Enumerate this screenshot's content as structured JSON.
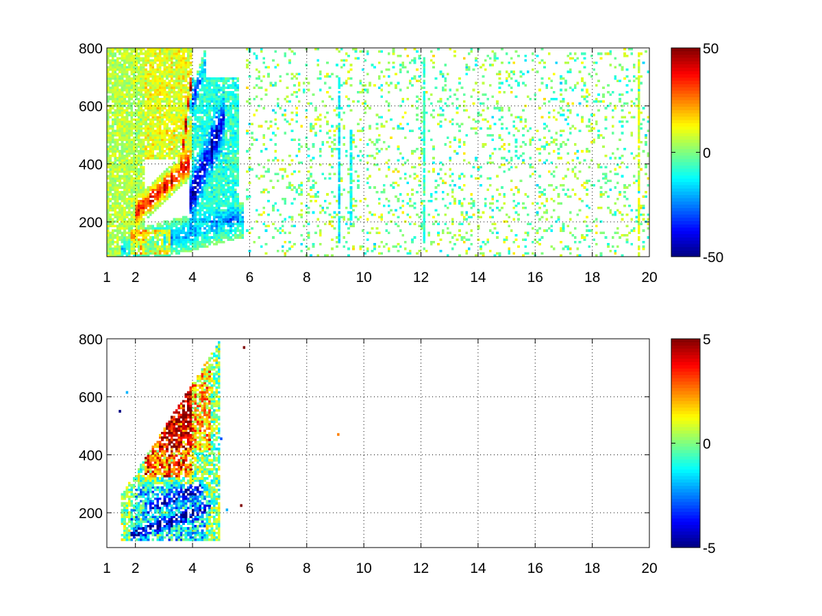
{
  "chart_data": [
    {
      "type": "heatmap",
      "title": "",
      "xlabel": "",
      "ylabel": "",
      "xlim": [
        1,
        20
      ],
      "ylim": [
        80,
        800
      ],
      "x_ticks": [
        1,
        2,
        4,
        6,
        8,
        10,
        12,
        14,
        16,
        18,
        20
      ],
      "y_ticks": [
        200,
        400,
        600,
        800
      ],
      "grid": true,
      "colormap": "jet",
      "clim": [
        -50,
        50
      ],
      "colorbar_ticks": [
        -50,
        0,
        50
      ],
      "features": [
        {
          "type": "band",
          "x_range": [
            2.0,
            3.9
          ],
          "y_start": 230,
          "y_end": 400,
          "sigma": 24,
          "value": 42
        },
        {
          "type": "band",
          "x_range": [
            3.6,
            4.0
          ],
          "y_start": 400,
          "y_end": 720,
          "sigma": 18,
          "value": 40
        },
        {
          "type": "band",
          "x_range": [
            3.9,
            5.1
          ],
          "y_start": 270,
          "y_end": 560,
          "sigma": 45,
          "value": -42
        },
        {
          "type": "band",
          "x_range": [
            3.8,
            4.5
          ],
          "y_start": 560,
          "y_end": 760,
          "sigma": 22,
          "value": -28
        },
        {
          "type": "band",
          "x_range": [
            1.5,
            5.8
          ],
          "y_start": 100,
          "y_end": 210,
          "sigma": 28,
          "value": -22
        },
        {
          "type": "blob",
          "x_range": [
            1.8,
            3.2
          ],
          "y_range": [
            90,
            170
          ],
          "value": 22
        },
        {
          "type": "blob",
          "x_range": [
            2.3,
            4.0
          ],
          "y_range": [
            420,
            800
          ],
          "value": 12
        },
        {
          "type": "blob",
          "x_range": [
            4.0,
            5.6
          ],
          "y_range": [
            200,
            700
          ],
          "value": -10
        },
        {
          "type": "blob",
          "x_range": [
            1.0,
            2.3
          ],
          "y_range": [
            80,
            800
          ],
          "value": 6
        },
        {
          "type": "scatter",
          "x_range": [
            5.9,
            20
          ],
          "y_range": [
            80,
            800
          ],
          "density": 0.13,
          "value_range": [
            -12,
            12
          ]
        },
        {
          "type": "stripe",
          "x": 9.15,
          "y_range": [
            130,
            700
          ],
          "value": -14
        },
        {
          "type": "stripe",
          "x": 9.55,
          "y_range": [
            180,
            520
          ],
          "value": -12
        },
        {
          "type": "stripe",
          "x": 12.1,
          "y_range": [
            80,
            780
          ],
          "value": -8
        },
        {
          "type": "stripe",
          "x": 19.65,
          "y_range": [
            80,
            780
          ],
          "value": 8
        }
      ]
    },
    {
      "type": "heatmap",
      "title": "",
      "xlabel": "",
      "ylabel": "",
      "xlim": [
        1,
        20
      ],
      "ylim": [
        80,
        800
      ],
      "x_ticks": [
        1,
        2,
        4,
        6,
        8,
        10,
        12,
        14,
        16,
        18,
        20
      ],
      "y_ticks": [
        200,
        400,
        600,
        800
      ],
      "grid": true,
      "colormap": "jet",
      "clim": [
        -5,
        5
      ],
      "colorbar_ticks": [
        -5,
        0,
        5
      ],
      "features": [
        {
          "type": "region",
          "x_range": [
            1.5,
            5.0
          ],
          "y_min": 100,
          "y_max_start": 260,
          "y_max_end": 800
        },
        {
          "type": "blob",
          "x_range": [
            2.3,
            4.0
          ],
          "y_range": [
            320,
            620
          ],
          "value": 3
        },
        {
          "type": "blob",
          "x_range": [
            2.8,
            4.6
          ],
          "y_range": [
            420,
            780
          ],
          "value": 2
        },
        {
          "type": "blob",
          "x_range": [
            1.8,
            4.5
          ],
          "y_range": [
            100,
            300
          ],
          "value": -1.5
        },
        {
          "type": "band",
          "x_range": [
            2.3,
            4.4
          ],
          "y_start": 210,
          "y_end": 290,
          "sigma": 14,
          "value": -3.5
        },
        {
          "type": "band",
          "x_range": [
            1.8,
            4.6
          ],
          "y_start": 120,
          "y_end": 220,
          "sigma": 14,
          "value": -4
        }
      ],
      "outliers": [
        {
          "x": 1.45,
          "y": 550,
          "value": -5
        },
        {
          "x": 5.7,
          "y": 225,
          "value": 5
        },
        {
          "x": 5.0,
          "y": 455,
          "value": -3
        },
        {
          "x": 5.2,
          "y": 210,
          "value": -2
        },
        {
          "x": 9.1,
          "y": 470,
          "value": 2.5
        },
        {
          "x": 5.8,
          "y": 770,
          "value": 5
        },
        {
          "x": 1.7,
          "y": 615,
          "value": -2
        }
      ]
    }
  ]
}
